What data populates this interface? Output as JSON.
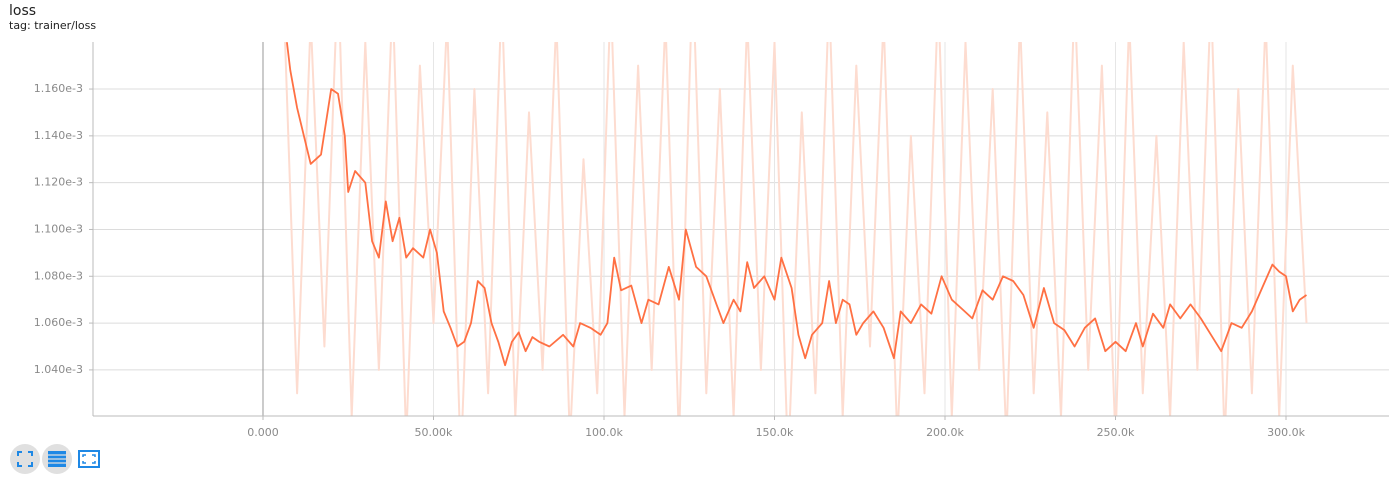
{
  "header": {
    "title": "loss",
    "tag": "tag: trainer/loss"
  },
  "chart_data": {
    "type": "line",
    "xlim": [
      -49850,
      330200
    ],
    "ylim": [
      0.0010203,
      0.0011801
    ],
    "xticks": [
      {
        "value": 0,
        "label": "0.000"
      },
      {
        "value": 50000,
        "label": "50.00k"
      },
      {
        "value": 100000,
        "label": "100.0k"
      },
      {
        "value": 150000,
        "label": "150.0k"
      },
      {
        "value": 200000,
        "label": "200.0k"
      },
      {
        "value": 250000,
        "label": "250.0k"
      },
      {
        "value": 300000,
        "label": "300.0k"
      }
    ],
    "yticks": [
      {
        "value": 0.00104,
        "label": "1.040e-3"
      },
      {
        "value": 0.00106,
        "label": "1.060e-3"
      },
      {
        "value": 0.00108,
        "label": "1.080e-3"
      },
      {
        "value": 0.0011,
        "label": "1.100e-3"
      },
      {
        "value": 0.00112,
        "label": "1.120e-3"
      },
      {
        "value": 0.00114,
        "label": "1.140e-3"
      },
      {
        "value": 0.00116,
        "label": "1.160e-3"
      }
    ],
    "grid": true,
    "series": [
      {
        "color": "#fddcd0",
        "x": [
          6000,
          10000,
          14000,
          18000,
          22000,
          26000,
          30000,
          34000,
          38000,
          42000,
          46000,
          50000,
          54000,
          58000,
          62000,
          66000,
          70000,
          74000,
          78000,
          82000,
          86000,
          90000,
          94000,
          98000,
          102000,
          106000,
          110000,
          114000,
          118000,
          122000,
          126000,
          130000,
          134000,
          138000,
          142000,
          146000,
          150000,
          154000,
          158000,
          162000,
          166000,
          170000,
          174000,
          178000,
          182000,
          186000,
          190000,
          194000,
          198000,
          202000,
          206000,
          210000,
          214000,
          218000,
          222000,
          226000,
          230000,
          234000,
          238000,
          242000,
          246000,
          250000,
          254000,
          258000,
          262000,
          266000,
          270000,
          274000,
          278000,
          282000,
          286000,
          290000,
          294000,
          298000,
          302000,
          306000
        ],
        "values": [
          0.0012,
          0.00103,
          0.00119,
          0.00105,
          0.00121,
          0.00102,
          0.00118,
          0.00104,
          0.0012,
          0.00101,
          0.00117,
          0.00106,
          0.00119,
          0.001,
          0.00116,
          0.00103,
          0.0012,
          0.00102,
          0.00115,
          0.00104,
          0.00119,
          0.00101,
          0.00113,
          0.00103,
          0.0012,
          0.00102,
          0.00117,
          0.00104,
          0.00119,
          0.00101,
          0.00121,
          0.00103,
          0.00116,
          0.00102,
          0.00119,
          0.00104,
          0.00118,
          0.001,
          0.00115,
          0.00103,
          0.0012,
          0.00102,
          0.00117,
          0.00105,
          0.00119,
          0.00101,
          0.00114,
          0.00103,
          0.0012,
          0.00102,
          0.00118,
          0.00104,
          0.00116,
          0.00101,
          0.00119,
          0.00103,
          0.00115,
          0.00102,
          0.0012,
          0.00104,
          0.00117,
          0.00101,
          0.00119,
          0.00103,
          0.00114,
          0.00102,
          0.00118,
          0.00104,
          0.0012,
          0.00101,
          0.00116,
          0.00103,
          0.00119,
          0.00102,
          0.00117,
          0.00106
        ]
      },
      {
        "color": "#ff7043",
        "x": [
          7000,
          8000,
          10000,
          12000,
          14000,
          17000,
          20000,
          22000,
          24000,
          25000,
          27000,
          30000,
          32000,
          34000,
          36000,
          38000,
          40000,
          42000,
          44000,
          47000,
          49000,
          51000,
          53000,
          55000,
          57000,
          59000,
          61000,
          63000,
          65000,
          67000,
          69000,
          71000,
          73000,
          75000,
          77000,
          79000,
          81000,
          84000,
          88000,
          91000,
          93000,
          96000,
          99000,
          101000,
          103000,
          105000,
          108000,
          111000,
          113000,
          116000,
          119000,
          122000,
          124000,
          127000,
          130000,
          133000,
          135000,
          138000,
          140000,
          142000,
          144000,
          147000,
          150000,
          152000,
          155000,
          157000,
          159000,
          161000,
          164000,
          166000,
          168000,
          170000,
          172000,
          174000,
          176000,
          179000,
          182000,
          185000,
          187000,
          190000,
          193000,
          196000,
          199000,
          202000,
          205000,
          208000,
          211000,
          214000,
          217000,
          220000,
          223000,
          226000,
          229000,
          232000,
          235000,
          238000,
          241000,
          244000,
          247000,
          250000,
          253000,
          256000,
          258000,
          261000,
          264000,
          266000,
          269000,
          272000,
          275000,
          278000,
          281000,
          284000,
          287000,
          290000,
          293000,
          296000,
          298000,
          300000,
          302000,
          304000,
          306000
        ],
        "values": [
          0.00118,
          0.001168,
          0.001152,
          0.00114,
          0.001128,
          0.001132,
          0.00116,
          0.001158,
          0.00114,
          0.001116,
          0.001125,
          0.00112,
          0.001095,
          0.001088,
          0.001112,
          0.001095,
          0.001105,
          0.001088,
          0.001092,
          0.001088,
          0.0011,
          0.00109,
          0.001065,
          0.001058,
          0.00105,
          0.001052,
          0.00106,
          0.001078,
          0.001075,
          0.00106,
          0.001052,
          0.001042,
          0.001052,
          0.001056,
          0.001048,
          0.001054,
          0.001052,
          0.00105,
          0.001055,
          0.00105,
          0.00106,
          0.001058,
          0.001055,
          0.00106,
          0.001088,
          0.001074,
          0.001076,
          0.00106,
          0.00107,
          0.001068,
          0.001084,
          0.00107,
          0.0011,
          0.001084,
          0.00108,
          0.001068,
          0.00106,
          0.00107,
          0.001065,
          0.001086,
          0.001075,
          0.00108,
          0.00107,
          0.001088,
          0.001075,
          0.001055,
          0.001045,
          0.001055,
          0.00106,
          0.001078,
          0.00106,
          0.00107,
          0.001068,
          0.001055,
          0.00106,
          0.001065,
          0.001058,
          0.001045,
          0.001065,
          0.00106,
          0.001068,
          0.001064,
          0.00108,
          0.00107,
          0.001066,
          0.001062,
          0.001074,
          0.00107,
          0.00108,
          0.001078,
          0.001072,
          0.001058,
          0.001075,
          0.00106,
          0.001057,
          0.00105,
          0.001058,
          0.001062,
          0.001048,
          0.001052,
          0.001048,
          0.00106,
          0.00105,
          0.001064,
          0.001058,
          0.001068,
          0.001062,
          0.001068,
          0.001062,
          0.001055,
          0.001048,
          0.00106,
          0.001058,
          0.001065,
          0.001075,
          0.001085,
          0.001082,
          0.00108,
          0.001065,
          0.00107,
          0.001072
        ]
      }
    ]
  }
}
